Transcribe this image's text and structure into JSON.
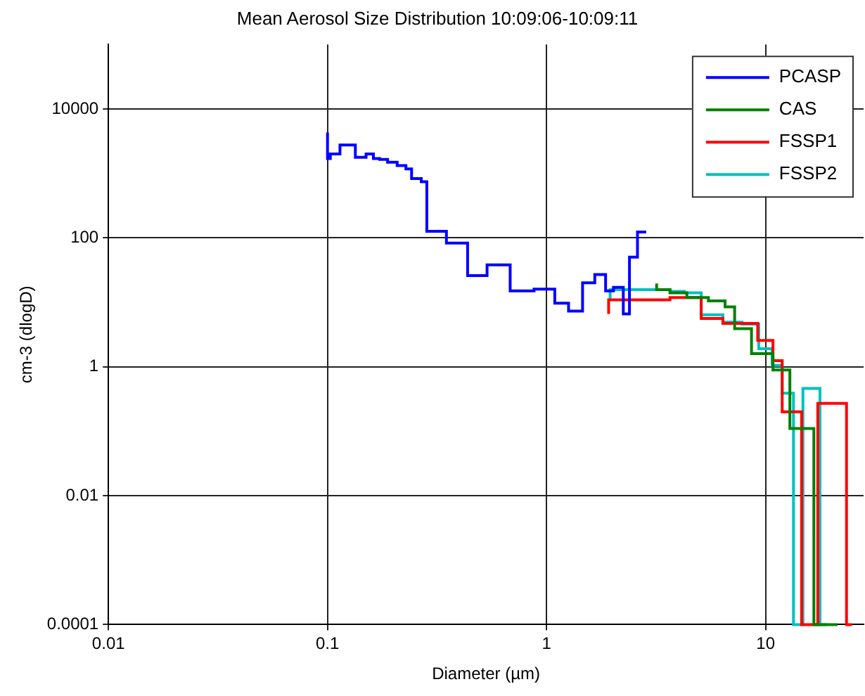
{
  "chart_data": {
    "type": "step",
    "title": "Mean Aerosol Size Distribution 10:09:06-10:09:11",
    "xlabel": "Diameter (µm)",
    "ylabel": "cm-3 (dlogD)",
    "log": "xy",
    "grid": true,
    "legend": "top right",
    "line_style": "solid",
    "marker": "none",
    "xlim": [
      0.01,
      28
    ],
    "xticks": [
      0.01,
      0.1,
      1,
      10
    ],
    "ylim": [
      0.0001,
      100000
    ],
    "yticks": [
      0.0001,
      0.01,
      1,
      100,
      10000
    ],
    "series": [
      {
        "name": "PCASP",
        "color": "#0000ff",
        "x": [
          0.1,
          0.103,
          0.114,
          0.134,
          0.15,
          0.162,
          0.173,
          0.188,
          0.208,
          0.228,
          0.242,
          0.268,
          0.284,
          0.349,
          0.436,
          0.535,
          0.682,
          0.877,
          1.09,
          1.26,
          1.46,
          1.66,
          1.86,
          2.02,
          2.24,
          2.39,
          2.6,
          2.78,
          2.85
        ],
        "values": [
          4300,
          1700,
          2000,
          2750,
          1770,
          2000,
          1700,
          1650,
          1490,
          1320,
          1170,
          830,
          740,
          126,
          83,
          26,
          38,
          15,
          16,
          9.7,
          7.3,
          20,
          27,
          15,
          17,
          6.6,
          50,
          123,
          123
        ]
      },
      {
        "name": "CAS",
        "color": "#008000",
        "x": [
          3.18,
          3.66,
          4.37,
          5.48,
          6.53,
          7.22,
          8.62,
          10.8,
          12.9,
          16.6,
          21.3
        ],
        "values": [
          19.5,
          15.7,
          14,
          11.8,
          10.5,
          8.5,
          3.9,
          1.6,
          0.89,
          0.11,
          0.0001
        ]
      },
      {
        "name": "FSSP1",
        "color": "#ff0000",
        "x": [
          1.92,
          3.66,
          5.08,
          6.38,
          9.2,
          10.8,
          11.9,
          14.6,
          17.3,
          23.4,
          24.8
        ],
        "values": [
          6.6,
          10.9,
          11.8,
          5.6,
          4.7,
          2.55,
          1.24,
          0.2,
          0.0001,
          0.27,
          0.0001
        ]
      },
      {
        "name": "FSSP2",
        "color": "#00c0c0",
        "x": [
          1.95,
          3.66,
          4.26,
          5.08,
          6.38,
          7.8,
          9.3,
          10.7,
          11.9,
          13.4,
          14.8,
          17.7,
          19.1
        ],
        "values": [
          10.5,
          15.7,
          14.7,
          14,
          6.4,
          4.9,
          4.6,
          1.9,
          1.05,
          0.39,
          0.0001,
          0.46,
          0.0001
        ]
      }
    ]
  }
}
